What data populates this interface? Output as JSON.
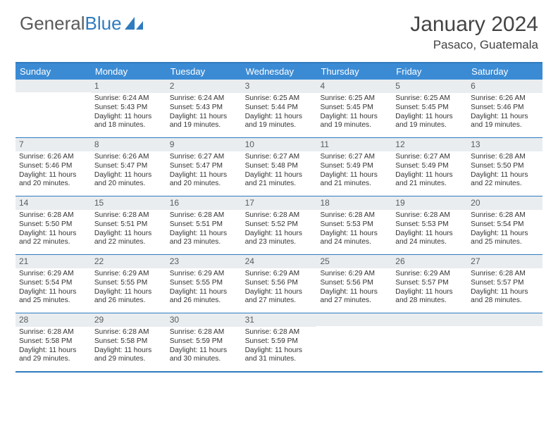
{
  "logo": {
    "text1": "General",
    "text2": "Blue"
  },
  "title": "January 2024",
  "location": "Pasaco, Guatemala",
  "colors": {
    "header_bg": "#3b8bd4",
    "border": "#2f7bbf",
    "daynum_bg": "#e9edf0",
    "text": "#333333",
    "title_text": "#444444"
  },
  "dayHeaders": [
    "Sunday",
    "Monday",
    "Tuesday",
    "Wednesday",
    "Thursday",
    "Friday",
    "Saturday"
  ],
  "weeks": [
    [
      {
        "n": "",
        "sr": "",
        "ss": "",
        "dl": ""
      },
      {
        "n": "1",
        "sr": "Sunrise: 6:24 AM",
        "ss": "Sunset: 5:43 PM",
        "dl": "Daylight: 11 hours and 18 minutes."
      },
      {
        "n": "2",
        "sr": "Sunrise: 6:24 AM",
        "ss": "Sunset: 5:43 PM",
        "dl": "Daylight: 11 hours and 19 minutes."
      },
      {
        "n": "3",
        "sr": "Sunrise: 6:25 AM",
        "ss": "Sunset: 5:44 PM",
        "dl": "Daylight: 11 hours and 19 minutes."
      },
      {
        "n": "4",
        "sr": "Sunrise: 6:25 AM",
        "ss": "Sunset: 5:45 PM",
        "dl": "Daylight: 11 hours and 19 minutes."
      },
      {
        "n": "5",
        "sr": "Sunrise: 6:25 AM",
        "ss": "Sunset: 5:45 PM",
        "dl": "Daylight: 11 hours and 19 minutes."
      },
      {
        "n": "6",
        "sr": "Sunrise: 6:26 AM",
        "ss": "Sunset: 5:46 PM",
        "dl": "Daylight: 11 hours and 19 minutes."
      }
    ],
    [
      {
        "n": "7",
        "sr": "Sunrise: 6:26 AM",
        "ss": "Sunset: 5:46 PM",
        "dl": "Daylight: 11 hours and 20 minutes."
      },
      {
        "n": "8",
        "sr": "Sunrise: 6:26 AM",
        "ss": "Sunset: 5:47 PM",
        "dl": "Daylight: 11 hours and 20 minutes."
      },
      {
        "n": "9",
        "sr": "Sunrise: 6:27 AM",
        "ss": "Sunset: 5:47 PM",
        "dl": "Daylight: 11 hours and 20 minutes."
      },
      {
        "n": "10",
        "sr": "Sunrise: 6:27 AM",
        "ss": "Sunset: 5:48 PM",
        "dl": "Daylight: 11 hours and 21 minutes."
      },
      {
        "n": "11",
        "sr": "Sunrise: 6:27 AM",
        "ss": "Sunset: 5:49 PM",
        "dl": "Daylight: 11 hours and 21 minutes."
      },
      {
        "n": "12",
        "sr": "Sunrise: 6:27 AM",
        "ss": "Sunset: 5:49 PM",
        "dl": "Daylight: 11 hours and 21 minutes."
      },
      {
        "n": "13",
        "sr": "Sunrise: 6:28 AM",
        "ss": "Sunset: 5:50 PM",
        "dl": "Daylight: 11 hours and 22 minutes."
      }
    ],
    [
      {
        "n": "14",
        "sr": "Sunrise: 6:28 AM",
        "ss": "Sunset: 5:50 PM",
        "dl": "Daylight: 11 hours and 22 minutes."
      },
      {
        "n": "15",
        "sr": "Sunrise: 6:28 AM",
        "ss": "Sunset: 5:51 PM",
        "dl": "Daylight: 11 hours and 22 minutes."
      },
      {
        "n": "16",
        "sr": "Sunrise: 6:28 AM",
        "ss": "Sunset: 5:51 PM",
        "dl": "Daylight: 11 hours and 23 minutes."
      },
      {
        "n": "17",
        "sr": "Sunrise: 6:28 AM",
        "ss": "Sunset: 5:52 PM",
        "dl": "Daylight: 11 hours and 23 minutes."
      },
      {
        "n": "18",
        "sr": "Sunrise: 6:28 AM",
        "ss": "Sunset: 5:53 PM",
        "dl": "Daylight: 11 hours and 24 minutes."
      },
      {
        "n": "19",
        "sr": "Sunrise: 6:28 AM",
        "ss": "Sunset: 5:53 PM",
        "dl": "Daylight: 11 hours and 24 minutes."
      },
      {
        "n": "20",
        "sr": "Sunrise: 6:28 AM",
        "ss": "Sunset: 5:54 PM",
        "dl": "Daylight: 11 hours and 25 minutes."
      }
    ],
    [
      {
        "n": "21",
        "sr": "Sunrise: 6:29 AM",
        "ss": "Sunset: 5:54 PM",
        "dl": "Daylight: 11 hours and 25 minutes."
      },
      {
        "n": "22",
        "sr": "Sunrise: 6:29 AM",
        "ss": "Sunset: 5:55 PM",
        "dl": "Daylight: 11 hours and 26 minutes."
      },
      {
        "n": "23",
        "sr": "Sunrise: 6:29 AM",
        "ss": "Sunset: 5:55 PM",
        "dl": "Daylight: 11 hours and 26 minutes."
      },
      {
        "n": "24",
        "sr": "Sunrise: 6:29 AM",
        "ss": "Sunset: 5:56 PM",
        "dl": "Daylight: 11 hours and 27 minutes."
      },
      {
        "n": "25",
        "sr": "Sunrise: 6:29 AM",
        "ss": "Sunset: 5:56 PM",
        "dl": "Daylight: 11 hours and 27 minutes."
      },
      {
        "n": "26",
        "sr": "Sunrise: 6:29 AM",
        "ss": "Sunset: 5:57 PM",
        "dl": "Daylight: 11 hours and 28 minutes."
      },
      {
        "n": "27",
        "sr": "Sunrise: 6:28 AM",
        "ss": "Sunset: 5:57 PM",
        "dl": "Daylight: 11 hours and 28 minutes."
      }
    ],
    [
      {
        "n": "28",
        "sr": "Sunrise: 6:28 AM",
        "ss": "Sunset: 5:58 PM",
        "dl": "Daylight: 11 hours and 29 minutes."
      },
      {
        "n": "29",
        "sr": "Sunrise: 6:28 AM",
        "ss": "Sunset: 5:58 PM",
        "dl": "Daylight: 11 hours and 29 minutes."
      },
      {
        "n": "30",
        "sr": "Sunrise: 6:28 AM",
        "ss": "Sunset: 5:59 PM",
        "dl": "Daylight: 11 hours and 30 minutes."
      },
      {
        "n": "31",
        "sr": "Sunrise: 6:28 AM",
        "ss": "Sunset: 5:59 PM",
        "dl": "Daylight: 11 hours and 31 minutes."
      },
      {
        "n": "",
        "sr": "",
        "ss": "",
        "dl": ""
      },
      {
        "n": "",
        "sr": "",
        "ss": "",
        "dl": ""
      },
      {
        "n": "",
        "sr": "",
        "ss": "",
        "dl": ""
      }
    ]
  ]
}
